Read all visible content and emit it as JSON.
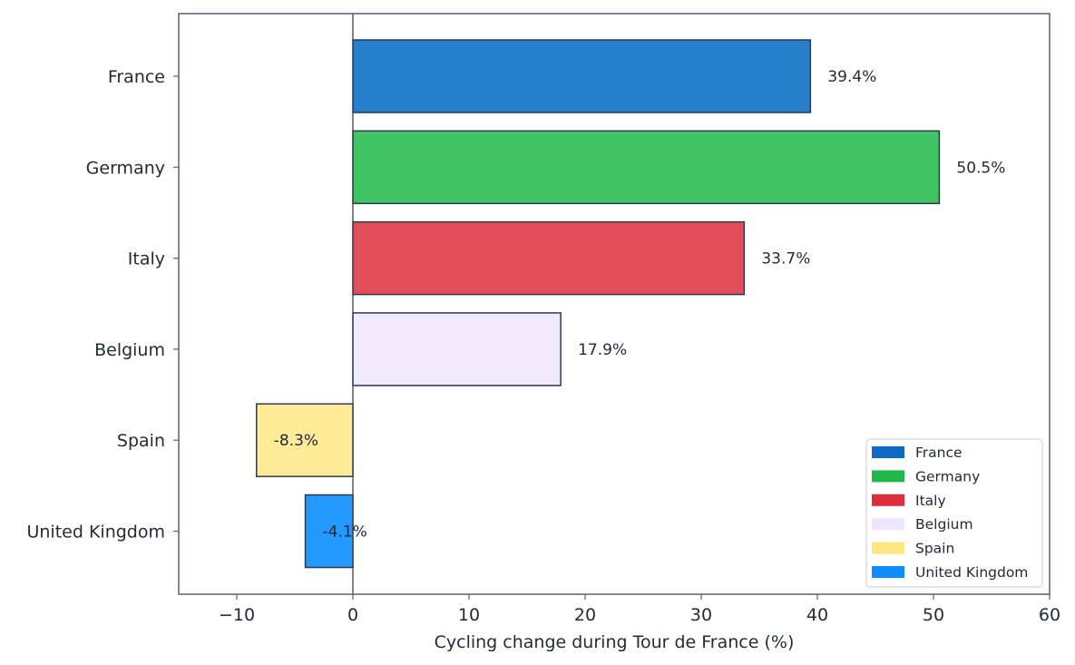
{
  "chart_data": {
    "type": "bar",
    "orientation": "horizontal",
    "categories": [
      "France",
      "Germany",
      "Italy",
      "Belgium",
      "Spain",
      "United Kingdom"
    ],
    "values": [
      39.4,
      50.5,
      33.7,
      17.9,
      -8.3,
      -4.1
    ],
    "value_labels": [
      "39.4%",
      "50.5%",
      "33.7%",
      "17.9%",
      "-8.3%",
      "-4.1%"
    ],
    "colors": [
      "#2680cc",
      "#40c463",
      "#e34d59",
      "#f0ebfc",
      "#ffec99",
      "#2499ff"
    ],
    "legend_colors": [
      "#0f6ac2",
      "#1fb84a",
      "#e02d3c",
      "#ede5fc",
      "#ffe680",
      "#0f8cff"
    ],
    "xlabel": "Cycling change during Tour de France (%)",
    "ylabel": "",
    "title": "",
    "xlim": [
      -15,
      60
    ],
    "xticks": [
      -10,
      0,
      10,
      20,
      30,
      40,
      50,
      60
    ],
    "xtick_labels": [
      "−10",
      "0",
      "10",
      "20",
      "30",
      "40",
      "50",
      "60"
    ],
    "grid": false,
    "legend": {
      "placement": "lower-right",
      "entries": [
        "France",
        "Germany",
        "Italy",
        "Belgium",
        "Spain",
        "United Kingdom"
      ]
    },
    "edge_color": "#2b3a4e",
    "text_color": "#222b3a"
  }
}
